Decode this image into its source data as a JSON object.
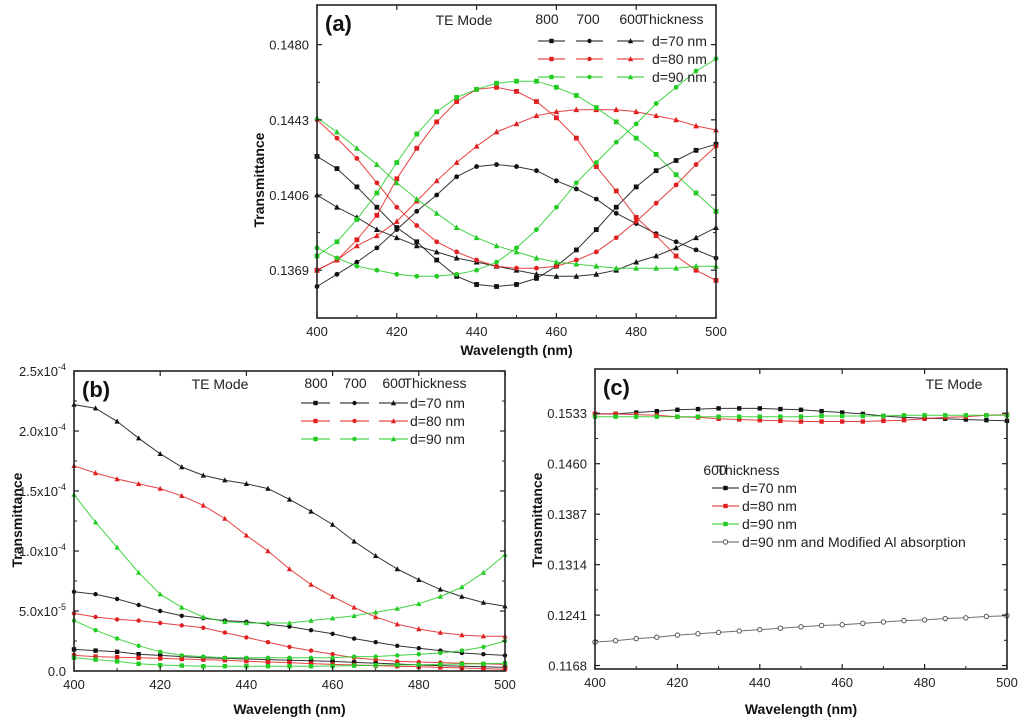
{
  "colors": {
    "d70": "#111111",
    "d80": "#e02020",
    "d90": "#22cc22",
    "mod": "#555555"
  },
  "chart_data": [
    {
      "id": "a",
      "type": "line",
      "panel_label": "(a)",
      "mode_text": "TE Mode",
      "xlabel": "Wavelength (nm)",
      "ylabel": "Transmittance",
      "xlim": [
        400,
        500
      ],
      "ylim": [
        0.13455,
        0.14995
      ],
      "x_ticks": [
        400,
        420,
        440,
        460,
        480,
        500
      ],
      "x_tick_labels": [
        "400",
        "420",
        "440",
        "460",
        "480",
        "500"
      ],
      "y_ticks": [
        0.1369,
        0.1406,
        0.1443,
        0.148
      ],
      "y_tick_labels": [
        "0.1369",
        "0.1406",
        "0.1443",
        "0.1480"
      ],
      "legend": {
        "header": [
          "800",
          "700",
          "600",
          "Thickness"
        ],
        "rows": [
          {
            "label": "d=70 nm",
            "color_key": "d70"
          },
          {
            "label": "d=80 nm",
            "color_key": "d80"
          },
          {
            "label": "d=90 nm",
            "color_key": "d90"
          }
        ]
      },
      "x": [
        400,
        405,
        410,
        415,
        420,
        425,
        430,
        435,
        440,
        445,
        450,
        455,
        460,
        465,
        470,
        475,
        480,
        485,
        490,
        495,
        500
      ],
      "series": [
        {
          "name": "800 d=70 nm",
          "color_key": "d70",
          "marker": "square",
          "values": [
            0.1425,
            0.1419,
            0.141,
            0.14,
            0.139,
            0.1383,
            0.1374,
            0.1366,
            0.1362,
            0.1361,
            0.1362,
            0.1365,
            0.1371,
            0.1379,
            0.1389,
            0.14,
            0.141,
            0.1418,
            0.1423,
            0.1428,
            0.1431
          ]
        },
        {
          "name": "700 d=70 nm",
          "color_key": "d70",
          "marker": "circle",
          "values": [
            0.1361,
            0.1367,
            0.1373,
            0.138,
            0.1389,
            0.1398,
            0.1406,
            0.1415,
            0.142,
            0.1421,
            0.142,
            0.1418,
            0.1413,
            0.1409,
            0.1404,
            0.1397,
            0.1392,
            0.1387,
            0.1383,
            0.1379,
            0.1375
          ]
        },
        {
          "name": "600 d=70 nm",
          "color_key": "d70",
          "marker": "triangle",
          "values": [
            0.1406,
            0.14,
            0.1395,
            0.1389,
            0.1385,
            0.1381,
            0.1378,
            0.1375,
            0.1373,
            0.1371,
            0.1369,
            0.1367,
            0.1366,
            0.1366,
            0.1367,
            0.1369,
            0.1373,
            0.1376,
            0.138,
            0.1385,
            0.139
          ]
        },
        {
          "name": "800 d=80 nm",
          "color_key": "d80",
          "marker": "square",
          "values": [
            0.1369,
            0.1374,
            0.1384,
            0.1396,
            0.1414,
            0.1429,
            0.1442,
            0.1452,
            0.1458,
            0.1459,
            0.1457,
            0.1452,
            0.1444,
            0.1434,
            0.142,
            0.1408,
            0.1395,
            0.1386,
            0.1376,
            0.1369,
            0.1364
          ]
        },
        {
          "name": "700 d=80 nm",
          "color_key": "d80",
          "marker": "circle",
          "values": [
            0.1443,
            0.1434,
            0.1424,
            0.1412,
            0.14,
            0.1391,
            0.1383,
            0.1378,
            0.1374,
            0.1371,
            0.137,
            0.137,
            0.1371,
            0.1374,
            0.1378,
            0.1385,
            0.1393,
            0.1402,
            0.1411,
            0.1421,
            0.143
          ]
        },
        {
          "name": "600 d=80 nm",
          "color_key": "d80",
          "marker": "triangle",
          "values": [
            0.1369,
            0.1374,
            0.1381,
            0.1386,
            0.1393,
            0.1403,
            0.1413,
            0.1422,
            0.143,
            0.1437,
            0.1441,
            0.1445,
            0.1447,
            0.1448,
            0.1448,
            0.1448,
            0.1447,
            0.1445,
            0.1443,
            0.144,
            0.1438
          ]
        },
        {
          "name": "800 d=90 nm",
          "color_key": "d90",
          "marker": "square",
          "values": [
            0.1376,
            0.1383,
            0.1394,
            0.1407,
            0.1422,
            0.1436,
            0.1447,
            0.1454,
            0.1458,
            0.1461,
            0.1462,
            0.1462,
            0.1459,
            0.1455,
            0.1449,
            0.1442,
            0.1434,
            0.1426,
            0.1416,
            0.1407,
            0.1398
          ]
        },
        {
          "name": "700 d=90 nm",
          "color_key": "d90",
          "marker": "circle",
          "values": [
            0.138,
            0.1375,
            0.1371,
            0.1369,
            0.1367,
            0.1366,
            0.1366,
            0.1367,
            0.1369,
            0.1373,
            0.138,
            0.1389,
            0.14,
            0.1412,
            0.1422,
            0.1432,
            0.1441,
            0.1451,
            0.1459,
            0.1467,
            0.1473
          ]
        },
        {
          "name": "600 d=90 nm",
          "color_key": "d90",
          "marker": "triangle",
          "values": [
            0.1444,
            0.1437,
            0.1429,
            0.1421,
            0.1412,
            0.1404,
            0.1397,
            0.139,
            0.1385,
            0.1381,
            0.1378,
            0.1375,
            0.1373,
            0.1372,
            0.1371,
            0.137,
            0.137,
            0.137,
            0.137,
            0.1371,
            0.1371
          ]
        }
      ]
    },
    {
      "id": "b",
      "type": "line",
      "panel_label": "(b)",
      "mode_text": "TE Mode",
      "xlabel": "Wavelength (nm)",
      "ylabel": "Transmittance",
      "xlim": [
        400,
        500
      ],
      "ylim": [
        0,
        0.00025
      ],
      "x_ticks": [
        400,
        420,
        440,
        460,
        480,
        500
      ],
      "x_tick_labels": [
        "400",
        "420",
        "440",
        "460",
        "480",
        "500"
      ],
      "y_ticks": [
        0,
        5e-05,
        0.0001,
        0.00015,
        0.0002,
        0.00025
      ],
      "y_tick_labels": [
        {
          "mant": "0.0",
          "exp": ""
        },
        {
          "mant": "5.0x10",
          "exp": "-5"
        },
        {
          "mant": "1.0x10",
          "exp": "-4"
        },
        {
          "mant": "1.5x10",
          "exp": "-4"
        },
        {
          "mant": "2.0x10",
          "exp": "-4"
        },
        {
          "mant": "2.5x10",
          "exp": "-4"
        }
      ],
      "legend": {
        "header": [
          "800",
          "700",
          "600",
          "Thickness"
        ],
        "rows": [
          {
            "label": "d=70 nm",
            "color_key": "d70"
          },
          {
            "label": "d=80 nm",
            "color_key": "d80"
          },
          {
            "label": "d=90 nm",
            "color_key": "d90"
          }
        ]
      },
      "x": [
        400,
        405,
        410,
        415,
        420,
        425,
        430,
        435,
        440,
        445,
        450,
        455,
        460,
        465,
        470,
        475,
        480,
        485,
        490,
        495,
        500
      ],
      "series": [
        {
          "name": "800 d=70 nm",
          "color_key": "d70",
          "marker": "square",
          "values": [
            1.8e-05,
            1.7e-05,
            1.6e-05,
            1.4e-05,
            1.3e-05,
            1.2e-05,
            1.1e-05,
            1.05e-05,
            1e-05,
            9.5e-06,
            9e-06,
            8.5e-06,
            8e-06,
            7.2e-06,
            6.5e-06,
            5.8e-06,
            5e-06,
            4.5e-06,
            4e-06,
            3.5e-06,
            3e-06
          ]
        },
        {
          "name": "700 d=70 nm",
          "color_key": "d70",
          "marker": "circle",
          "values": [
            6.6e-05,
            6.4e-05,
            6e-05,
            5.5e-05,
            5e-05,
            4.6e-05,
            4.4e-05,
            4.2e-05,
            4.1e-05,
            3.9e-05,
            3.7e-05,
            3.4e-05,
            3.1e-05,
            2.7e-05,
            2.4e-05,
            2.1e-05,
            1.9e-05,
            1.7e-05,
            1.5e-05,
            1.4e-05,
            1.3e-05
          ]
        },
        {
          "name": "600 d=70 nm",
          "color_key": "d70",
          "marker": "triangle",
          "values": [
            0.000222,
            0.000219,
            0.000208,
            0.000194,
            0.000181,
            0.00017,
            0.000163,
            0.000159,
            0.000156,
            0.000152,
            0.000143,
            0.000133,
            0.000122,
            0.000108,
            9.6e-05,
            8.5e-05,
            7.6e-05,
            6.8e-05,
            6.2e-05,
            5.7e-05,
            5.4e-05
          ]
        },
        {
          "name": "800 d=80 nm",
          "color_key": "d80",
          "marker": "square",
          "values": [
            1.3e-05,
            1.2e-05,
            1.15e-05,
            1.1e-05,
            1.05e-05,
            1e-05,
            9.5e-06,
            9e-06,
            8.2e-06,
            7.5e-06,
            7e-06,
            6.2e-06,
            5.5e-06,
            5e-06,
            4.5e-06,
            4e-06,
            3.5e-06,
            3e-06,
            2.5e-06,
            2e-06,
            1.5e-06
          ]
        },
        {
          "name": "700 d=80 nm",
          "color_key": "d80",
          "marker": "circle",
          "values": [
            4.8e-05,
            4.5e-05,
            4.3e-05,
            4.2e-05,
            4e-05,
            3.8e-05,
            3.6e-05,
            3.2e-05,
            2.8e-05,
            2.4e-05,
            2e-05,
            1.7e-05,
            1.4e-05,
            1.1e-05,
            9.5e-06,
            8e-06,
            7.5e-06,
            7e-06,
            6.5e-06,
            6e-06,
            5.5e-06
          ]
        },
        {
          "name": "600 d=80 nm",
          "color_key": "d80",
          "marker": "triangle",
          "values": [
            0.000171,
            0.000165,
            0.00016,
            0.000156,
            0.000152,
            0.000146,
            0.000138,
            0.000127,
            0.000113,
            0.0001,
            8.5e-05,
            7.2e-05,
            6.2e-05,
            5.3e-05,
            4.5e-05,
            3.9e-05,
            3.5e-05,
            3.2e-05,
            3e-05,
            2.9e-05,
            2.9e-05
          ]
        },
        {
          "name": "800 d=90 nm",
          "color_key": "d90",
          "marker": "square",
          "values": [
            1.1e-05,
            9.5e-06,
            8e-06,
            6e-06,
            5e-06,
            4.5e-06,
            4e-06,
            4e-06,
            4e-06,
            4e-06,
            4e-06,
            4e-06,
            4.2e-06,
            4.5e-06,
            4.8e-06,
            5e-06,
            5.2e-06,
            5.5e-06,
            5.8e-06,
            6e-06,
            6.5e-06
          ]
        },
        {
          "name": "700 d=90 nm",
          "color_key": "d90",
          "marker": "circle",
          "values": [
            4.2e-05,
            3.4e-05,
            2.7e-05,
            2.1e-05,
            1.6e-05,
            1.3e-05,
            1.2e-05,
            1.1e-05,
            1.1e-05,
            1.1e-05,
            1.1e-05,
            1.1e-05,
            1.1e-05,
            1.2e-05,
            1.2e-05,
            1.3e-05,
            1.4e-05,
            1.5e-05,
            1.7e-05,
            2e-05,
            2.5e-05
          ]
        },
        {
          "name": "600 d=90 nm",
          "color_key": "d90",
          "marker": "triangle",
          "values": [
            0.000147,
            0.000124,
            0.000103,
            8.2e-05,
            6.4e-05,
            5.3e-05,
            4.5e-05,
            4.1e-05,
            4e-05,
            4e-05,
            4e-05,
            4.2e-05,
            4.4e-05,
            4.6e-05,
            4.9e-05,
            5.2e-05,
            5.6e-05,
            6.2e-05,
            7e-05,
            8.2e-05,
            9.7e-05
          ]
        }
      ]
    },
    {
      "id": "c",
      "type": "line",
      "panel_label": "(c)",
      "mode_text": "TE Mode",
      "xlabel": "Wavelength (nm)",
      "ylabel": "Transmittance",
      "xlim": [
        400,
        500
      ],
      "ylim": [
        0.1163,
        0.1597
      ],
      "x_ticks": [
        400,
        420,
        440,
        460,
        480,
        500
      ],
      "x_tick_labels": [
        "400",
        "420",
        "440",
        "460",
        "480",
        "500"
      ],
      "y_ticks": [
        0.1168,
        0.1241,
        0.1314,
        0.1387,
        0.146,
        0.1533
      ],
      "y_tick_labels": [
        "0.1168",
        "0.1241",
        "0.1314",
        "0.1387",
        "0.1460",
        "0.1533"
      ],
      "legend": {
        "header": [
          "600",
          "Thickness"
        ],
        "rows": [
          {
            "label": "d=70 nm",
            "color_key": "d70",
            "marker": "square"
          },
          {
            "label": "d=80 nm",
            "color_key": "d80",
            "marker": "square"
          },
          {
            "label": "d=90 nm",
            "color_key": "d90",
            "marker": "square"
          },
          {
            "label": "d=90 nm and Modified Al absorption",
            "color_key": "mod",
            "marker": "open-circle"
          }
        ]
      },
      "x": [
        400,
        405,
        410,
        415,
        420,
        425,
        430,
        435,
        440,
        445,
        450,
        455,
        460,
        465,
        470,
        475,
        480,
        485,
        490,
        495,
        500
      ],
      "series": [
        {
          "name": "600 d=70 nm",
          "color_key": "d70",
          "marker": "square",
          "values": [
            0.1532,
            0.1532,
            0.1534,
            0.1536,
            0.1538,
            0.1539,
            0.154,
            0.154,
            0.154,
            0.1539,
            0.1538,
            0.1536,
            0.1534,
            0.1532,
            0.1529,
            0.1527,
            0.1526,
            0.1525,
            0.1524,
            0.1523,
            0.1522
          ]
        },
        {
          "name": "600 d=80 nm",
          "color_key": "d80",
          "marker": "square",
          "values": [
            0.1532,
            0.1532,
            0.1531,
            0.153,
            0.1528,
            0.1527,
            0.1525,
            0.1524,
            0.1523,
            0.1522,
            0.1521,
            0.1521,
            0.1521,
            0.1521,
            0.1522,
            0.1523,
            0.1525,
            0.1527,
            0.1528,
            0.153,
            0.1531
          ]
        },
        {
          "name": "600 d=90 nm",
          "color_key": "d90",
          "marker": "square",
          "values": [
            0.1528,
            0.1528,
            0.1528,
            0.1528,
            0.1528,
            0.1528,
            0.1528,
            0.1528,
            0.1528,
            0.1528,
            0.1528,
            0.1529,
            0.1529,
            0.1529,
            0.1529,
            0.153,
            0.153,
            0.153,
            0.153,
            0.153,
            0.153
          ]
        },
        {
          "name": "d=90 nm and Modified Al absorption",
          "color_key": "mod",
          "marker": "open-circle",
          "values": [
            0.1202,
            0.1204,
            0.1207,
            0.1209,
            0.1212,
            0.1214,
            0.1216,
            0.1218,
            0.122,
            0.1222,
            0.1224,
            0.1226,
            0.1227,
            0.1229,
            0.1231,
            0.1233,
            0.1234,
            0.1236,
            0.1237,
            0.1239,
            0.124
          ]
        }
      ]
    }
  ]
}
